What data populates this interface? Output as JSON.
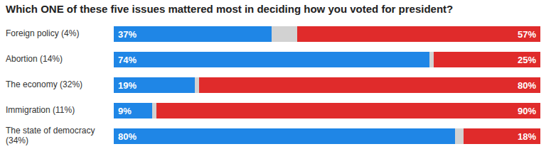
{
  "chart_data": {
    "type": "bar",
    "orientation": "horizontal",
    "stacked": true,
    "title": "Which ONE of these five issues mattered most in deciding how you voted for president?",
    "categories": [
      "Foreign policy (4%)",
      "Abortion (14%)",
      "The economy (32%)",
      "Immigration (11%)",
      "The state of democracy (34%)"
    ],
    "series": [
      {
        "color": "#1f86e6",
        "values": [
          37,
          74,
          19,
          9,
          80
        ],
        "value_labels": [
          "37%",
          "74%",
          "19%",
          "9%",
          "80%"
        ]
      },
      {
        "color": "#d2d2d2",
        "values": [
          6,
          1,
          1,
          1,
          2
        ]
      },
      {
        "color": "#e02b2b",
        "values": [
          57,
          25,
          80,
          90,
          18
        ],
        "value_labels": [
          "57%",
          "25%",
          "80%",
          "90%",
          "18%"
        ]
      }
    ],
    "xlim": [
      0,
      100
    ],
    "xticks": [
      0,
      100
    ],
    "tick_labels": false,
    "data_labels": true
  }
}
